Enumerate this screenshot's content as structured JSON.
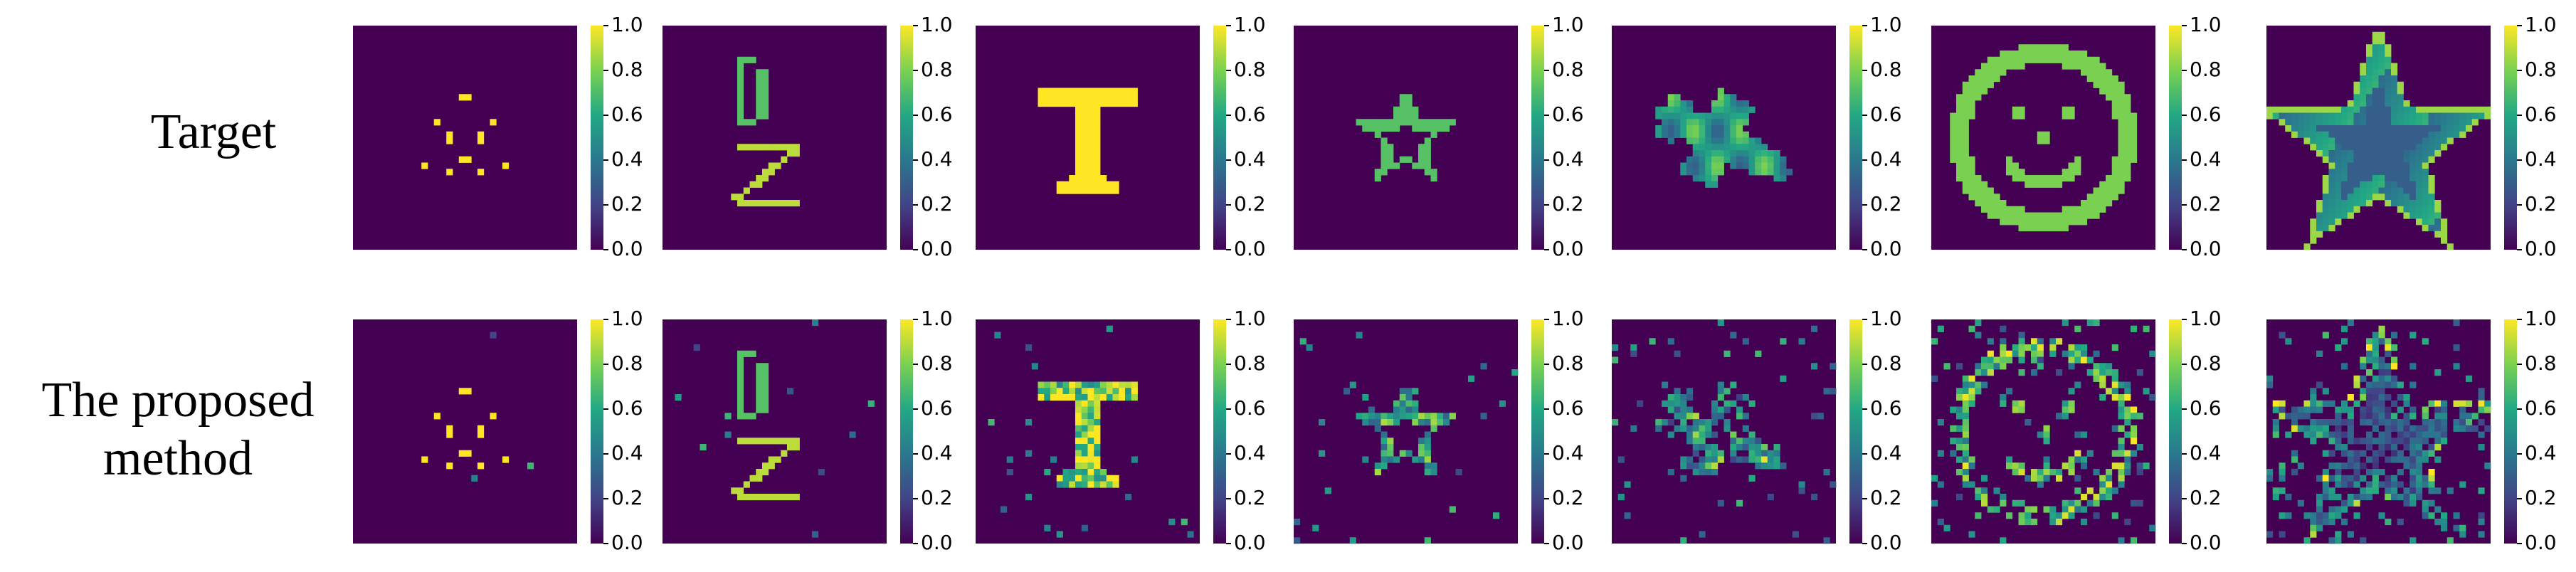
{
  "row_labels": [
    "Target",
    "The proposed method"
  ],
  "colorbar": {
    "ticks": [
      {
        "value": 0,
        "label": "0.0"
      },
      0.2,
      0.4,
      0.6,
      0.8,
      {
        "value": 1,
        "label": "1.0"
      }
    ]
  }
}
